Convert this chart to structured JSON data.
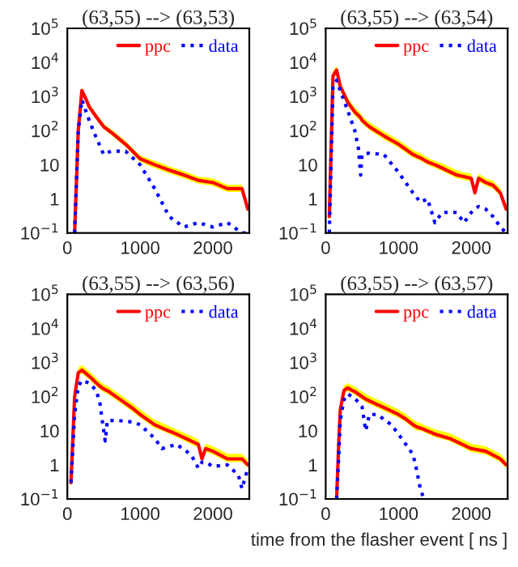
{
  "chart_data": [
    {
      "type": "line",
      "title": "(63,55) --> (63,53)",
      "x": [
        100,
        150,
        200,
        250,
        300,
        400,
        500,
        600,
        800,
        1000,
        1200,
        1400,
        1600,
        1800,
        2000,
        2200,
        2400,
        2480
      ],
      "xlim": [
        0,
        2500
      ],
      "xticks": [
        0,
        1000,
        2000
      ],
      "log": "y",
      "ylim": [
        0.1,
        100000
      ],
      "yticks": [
        {
          "value": 0.1,
          "label": "10$^{−1}$"
        },
        1,
        10,
        {
          "value": 100,
          "label": "10$^{2}$"
        },
        {
          "value": 1000,
          "label": "10$^{3}$"
        },
        {
          "value": 10000,
          "label": "10$^{4}$"
        },
        {
          "value": 100000,
          "label": "10$^{5}$"
        }
      ],
      "legend": "top right",
      "grid": false,
      "series": [
        {
          "name": "ppc",
          "color": "#ff0000",
          "line_style": "solid",
          "values": [
            0.1,
            100,
            1500,
            900,
            500,
            250,
            130,
            90,
            40,
            15,
            10,
            7,
            5,
            3.5,
            3,
            2,
            2,
            0.5
          ],
          "lower": [
            0.1,
            80,
            1200,
            750,
            420,
            210,
            110,
            75,
            33,
            12,
            8,
            5.5,
            4,
            2.8,
            2.4,
            1.6,
            1.6,
            0.4
          ],
          "upper": [
            0.1,
            120,
            1900,
            1100,
            620,
            310,
            160,
            110,
            50,
            19,
            13,
            9,
            6.5,
            4.5,
            4,
            2.6,
            2.6,
            0.6
          ]
        },
        {
          "name": "data",
          "color": "#0000ff",
          "line_style": "dotted",
          "values": [
            0.1,
            100,
            800,
            400,
            200,
            60,
            20,
            25,
            25,
            10,
            2,
            0.3,
            0.15,
            0.2,
            0.15,
            0.2,
            0.1,
            0.1
          ]
        }
      ]
    },
    {
      "type": "line",
      "title": "(63,55) --> (63,54)",
      "x": [
        50,
        100,
        150,
        200,
        300,
        400,
        450,
        480,
        500,
        600,
        800,
        1000,
        1200,
        1300,
        1400,
        1500,
        1600,
        1800,
        1900,
        2000,
        2050,
        2100,
        2200,
        2300,
        2400,
        2480
      ],
      "xlim": [
        0,
        2500
      ],
      "xticks": [
        0,
        1000,
        2000
      ],
      "log": "y",
      "ylim": [
        0.1,
        100000
      ],
      "yticks": [
        {
          "value": 0.1,
          "label": "10$^{−1}$"
        },
        1,
        10,
        {
          "value": 100,
          "label": "10$^{2}$"
        },
        {
          "value": 1000,
          "label": "10$^{3}$"
        },
        {
          "value": 10000,
          "label": "10$^{4}$"
        },
        {
          "value": 100000,
          "label": "10$^{5}$"
        }
      ],
      "legend": "top right",
      "grid": false,
      "series": [
        {
          "name": "ppc",
          "color": "#ff0000",
          "line_style": "solid",
          "values": [
            0.3,
            4000,
            6000,
            2000,
            700,
            350,
            280,
            240,
            200,
            130,
            70,
            40,
            20,
            16,
            12,
            10,
            8,
            5,
            4.5,
            4,
            1.5,
            4,
            3,
            2.5,
            1.5,
            0.5
          ],
          "lower": [
            0.2,
            3200,
            4800,
            1600,
            560,
            280,
            220,
            190,
            160,
            105,
            56,
            32,
            16,
            13,
            10,
            8,
            6.5,
            4,
            3.6,
            3.2,
            1.2,
            3.2,
            2.4,
            2,
            1.2,
            0.4
          ],
          "upper": [
            0.4,
            5500,
            8000,
            2700,
            950,
            470,
            380,
            330,
            270,
            175,
            95,
            54,
            27,
            22,
            16,
            13,
            11,
            7,
            6,
            5.5,
            2,
            5.5,
            4,
            3.4,
            2,
            0.7
          ]
        },
        {
          "name": "data",
          "color": "#0000ff",
          "line_style": "dotted",
          "values": [
            0.1,
            2000,
            3000,
            1500,
            400,
            100,
            30,
            5,
            20,
            22,
            20,
            6,
            1.5,
            0.8,
            1,
            0.2,
            0.4,
            0.4,
            0.2,
            0.4,
            0.5,
            0.6,
            0.5,
            0.3,
            0.15,
            0.1
          ]
        }
      ]
    },
    {
      "type": "line",
      "title": "(63,55) --> (63,56)",
      "x": [
        50,
        100,
        150,
        200,
        300,
        400,
        450,
        480,
        520,
        550,
        700,
        900,
        1000,
        1200,
        1300,
        1500,
        1700,
        1800,
        1850,
        1900,
        2000,
        2200,
        2350,
        2400,
        2480
      ],
      "xlim": [
        0,
        2500
      ],
      "xticks": [
        0,
        1000,
        2000
      ],
      "log": "y",
      "ylim": [
        0.1,
        100000
      ],
      "yticks": [
        {
          "value": 0.1,
          "label": "10$^{−1}$"
        },
        1,
        10,
        {
          "value": 100,
          "label": "10$^{2}$"
        },
        {
          "value": 1000,
          "label": "10$^{3}$"
        },
        {
          "value": 10000,
          "label": "10$^{4}$"
        },
        {
          "value": 100000,
          "label": "10$^{5}$"
        }
      ],
      "legend": "top right",
      "grid": false,
      "series": [
        {
          "name": "ppc",
          "color": "#ff0000",
          "line_style": "solid",
          "values": [
            0.3,
            100,
            500,
            600,
            400,
            250,
            200,
            180,
            160,
            150,
            90,
            45,
            30,
            15,
            12,
            8,
            5,
            4,
            1.5,
            3,
            2.5,
            1.5,
            1.5,
            1.5,
            1
          ],
          "lower": [
            0.2,
            80,
            400,
            480,
            320,
            200,
            160,
            145,
            130,
            120,
            72,
            36,
            24,
            12,
            10,
            6.5,
            4,
            3.2,
            1.2,
            2.4,
            2,
            1.2,
            1.2,
            1.2,
            0.8
          ],
          "upper": [
            0.4,
            140,
            700,
            850,
            560,
            350,
            280,
            250,
            220,
            210,
            125,
            63,
            42,
            21,
            17,
            11,
            7,
            5.6,
            2.1,
            4.2,
            3.5,
            2.1,
            2.1,
            2.1,
            1.4
          ]
        },
        {
          "name": "data",
          "color": "#0000ff",
          "line_style": "dotted",
          "values": [
            0.3,
            30,
            200,
            300,
            250,
            150,
            60,
            20,
            5,
            20,
            20,
            18,
            15,
            6,
            3,
            4,
            2,
            0.8,
            1.2,
            1.2,
            0.9,
            1,
            0.5,
            0.2,
            0.8
          ]
        }
      ]
    },
    {
      "type": "line",
      "title": "(63,55) --> (63,57)",
      "xlabel": "time from the flasher event [ ns ]",
      "x": [
        150,
        180,
        200,
        250,
        300,
        400,
        500,
        550,
        600,
        700,
        800,
        900,
        1000,
        1100,
        1200,
        1250,
        1300,
        1350,
        1500,
        1700,
        2000,
        2200,
        2400,
        2480
      ],
      "xlim": [
        0,
        2500
      ],
      "xticks": [
        0,
        1000,
        2000
      ],
      "log": "y",
      "ylim": [
        0.1,
        100000
      ],
      "yticks": [
        {
          "value": 0.1,
          "label": "10$^{−1}$"
        },
        1,
        10,
        {
          "value": 100,
          "label": "10$^{2}$"
        },
        {
          "value": 1000,
          "label": "10$^{3}$"
        },
        {
          "value": 10000,
          "label": "10$^{4}$"
        },
        {
          "value": 100000,
          "label": "10$^{5}$"
        }
      ],
      "legend": "top right",
      "grid": false,
      "series": [
        {
          "name": "ppc",
          "color": "#ff0000",
          "line_style": "solid",
          "values": [
            0.1,
            5,
            40,
            150,
            180,
            140,
            100,
            85,
            75,
            60,
            48,
            38,
            30,
            22,
            15,
            13,
            12,
            11,
            8,
            6,
            3,
            2.5,
            1.5,
            1
          ],
          "lower": [
            0.1,
            4,
            32,
            120,
            145,
            112,
            80,
            68,
            60,
            48,
            38,
            30,
            24,
            18,
            12,
            10,
            10,
            9,
            6.5,
            5,
            2.4,
            2,
            1.2,
            0.8
          ],
          "upper": [
            0.1,
            7,
            55,
            210,
            250,
            195,
            140,
            120,
            105,
            85,
            67,
            53,
            42,
            31,
            21,
            18,
            17,
            15,
            11,
            8.5,
            4.2,
            3.5,
            2.1,
            1.4
          ]
        },
        {
          "name": "data",
          "color": "#0000ff",
          "line_style": "dotted",
          "values": [
            0.1,
            2,
            20,
            80,
            120,
            90,
            50,
            10,
            30,
            30,
            22,
            15,
            8,
            4,
            2,
            0.7,
            0.2,
            0.1,
            null,
            null,
            null,
            null,
            null,
            null
          ]
        }
      ]
    }
  ]
}
